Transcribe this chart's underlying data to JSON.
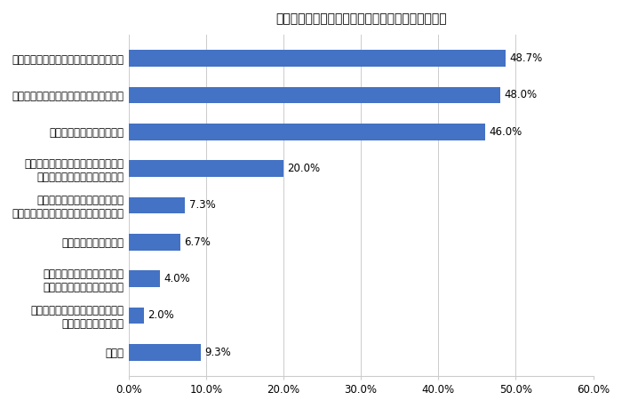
{
  "title": "運転免許証を返納しようと思われた理由は何ですか",
  "categories": [
    "視力が衰えて夜間運転するのが怖いため",
    "自分の運動能力に対して自信がないため",
    "とっさの判断が遅れるため",
    "税金、車検、駐車場代など維持費が\n高く車を手放そうと思ったため",
    "普通自動車の運転免許証更新の\n手続きに時間がかかるようになったため",
    "家族に勧められたため",
    "アクセルとブレーキペダルを\n踏み間違えたことがあるため",
    "車体を擦る、駐車場の施設などを\n壊すことが増えたため",
    "その他"
  ],
  "values": [
    48.7,
    48.0,
    46.0,
    20.0,
    7.3,
    6.7,
    4.0,
    2.0,
    9.3
  ],
  "bar_color": "#4472C4",
  "xlim": [
    0,
    60
  ],
  "xticks": [
    0,
    10,
    20,
    30,
    40,
    50,
    60
  ],
  "xtick_labels": [
    "0.0%",
    "10.0%",
    "20.0%",
    "30.0%",
    "40.0%",
    "50.0%",
    "60.0%"
  ],
  "title_fontsize": 13,
  "label_fontsize": 8.5,
  "value_fontsize": 8.5,
  "tick_fontsize": 8.5,
  "background_color": "#ffffff",
  "bar_height": 0.45
}
